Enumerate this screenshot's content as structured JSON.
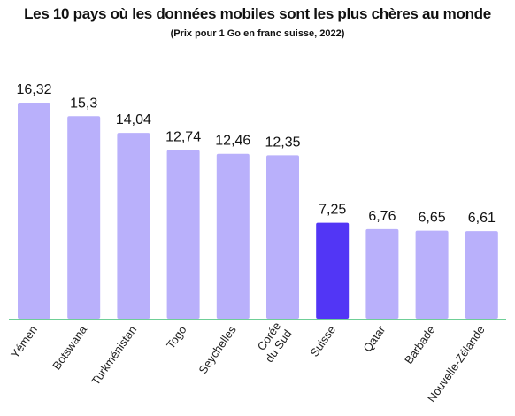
{
  "chart_data": {
    "type": "bar",
    "title": "Les 10 pays où les données mobiles sont les plus chères au monde",
    "subtitle": "(Prix pour 1 Go en franc suisse, 2022)",
    "categories": [
      "Yémen",
      "Botswana",
      "Turkménistan",
      "Togo",
      "Seychelles",
      "Corée du Sud",
      "Suisse",
      "Qatar",
      "Barbade",
      "Nouvelle-Zélande"
    ],
    "values": [
      16.32,
      15.3,
      14.04,
      12.74,
      12.46,
      12.35,
      7.25,
      6.76,
      6.65,
      6.61
    ],
    "value_labels": [
      "16,32",
      "15,3",
      "14,04",
      "12,74",
      "12,46",
      "12,35",
      "7,25",
      "6,76",
      "6,65",
      "6,61"
    ],
    "highlight": "Suisse",
    "colors": {
      "bar": "#b9b0fb",
      "highlight": "#5236f5",
      "baseline": "#6fcf97"
    },
    "ylim": [
      0,
      16.32
    ],
    "grid": false,
    "legend": "none"
  }
}
